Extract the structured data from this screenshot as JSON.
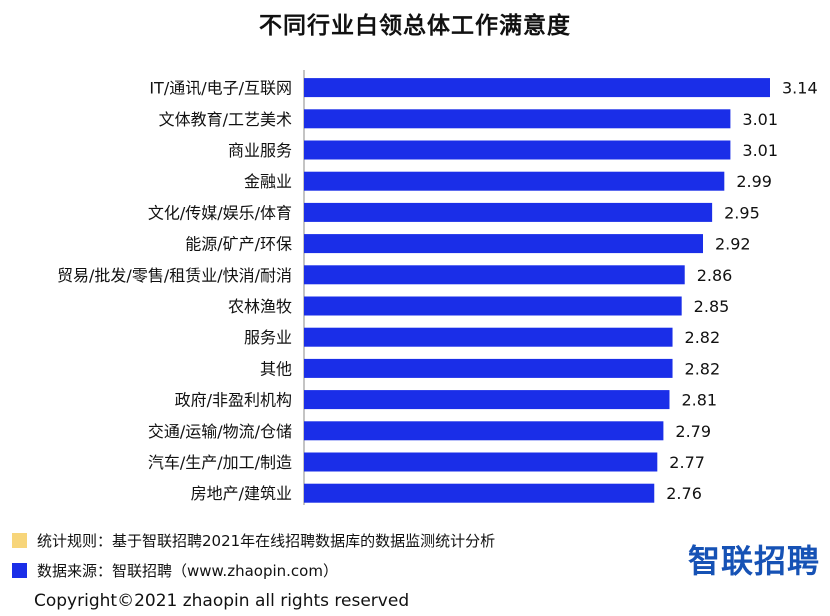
{
  "title": "不同行业白领总体工作满意度",
  "chart_data": {
    "type": "bar",
    "orientation": "horizontal",
    "xlim": [
      1.61,
      3.14
    ],
    "categories": [
      "IT/通讯/电子/互联网",
      "文体教育/工艺美术",
      "商业服务",
      "金融业",
      "文化/传媒/娱乐/体育",
      "能源/矿产/环保",
      "贸易/批发/零售/租赁业/快消/耐消",
      "农林渔牧",
      "服务业",
      "其他",
      "政府/非盈利机构",
      "交通/运输/物流/仓储",
      "汽车/生产/加工/制造",
      "房地产/建筑业"
    ],
    "values": [
      3.14,
      3.01,
      3.01,
      2.99,
      2.95,
      2.92,
      2.86,
      2.85,
      2.82,
      2.82,
      2.81,
      2.79,
      2.77,
      2.76
    ],
    "bar_color": "#1a2ee8",
    "grid": false
  },
  "legend": {
    "rule_color": "#f7d57a",
    "rule_text": "统计规则：基于智联招聘2021年在线招聘数据库的数据监测统计分析",
    "source_color": "#1a2ee8",
    "source_text": "数据来源：智联招聘（www.zhaopin.com）"
  },
  "brand": "智联招聘",
  "copyright": "Copyright©2021 zhaopin all rights reserved"
}
